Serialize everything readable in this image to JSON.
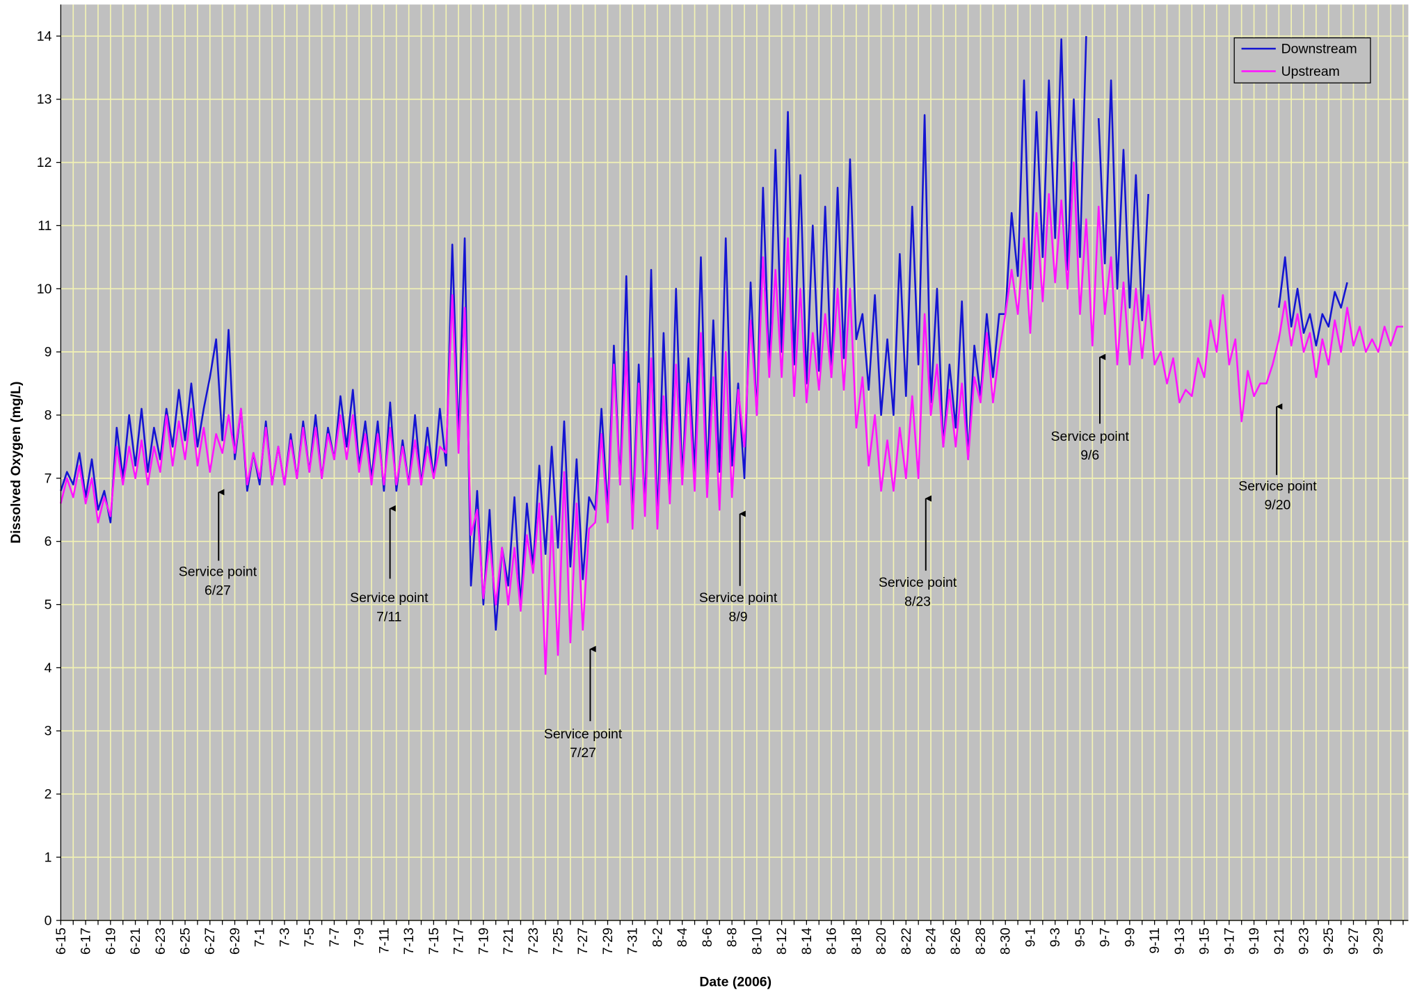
{
  "chart_data": {
    "type": "line",
    "x_label": "Date (2006)",
    "y_label": "Dissolved Oxygen (mg/L)",
    "categories": [
      "6-15",
      null,
      null,
      null,
      "6-17",
      null,
      null,
      null,
      "6-19",
      null,
      null,
      null,
      "6-21",
      null,
      null,
      null,
      "6-23",
      null,
      null,
      null,
      "6-25",
      null,
      null,
      null,
      "6-27",
      null,
      null,
      null,
      "6-29",
      null,
      null,
      null,
      "7-1",
      null,
      null,
      null,
      "7-3",
      null,
      null,
      null,
      "7-5",
      null,
      null,
      null,
      "7-7",
      null,
      null,
      null,
      "7-9",
      null,
      null,
      null,
      "7-11",
      null,
      null,
      null,
      "7-13",
      null,
      null,
      null,
      "7-15",
      null,
      null,
      null,
      "7-17",
      null,
      null,
      null,
      "7-19",
      null,
      null,
      null,
      "7-21",
      null,
      null,
      null,
      "7-23",
      null,
      null,
      null,
      "7-25",
      null,
      null,
      null,
      "7-27",
      null,
      null,
      null,
      "7-29",
      null,
      null,
      null,
      "7-31",
      null,
      null,
      null,
      "8-2",
      null,
      null,
      null,
      "8-4",
      null,
      null,
      null,
      "8-6",
      null,
      null,
      null,
      "8-8",
      null,
      null,
      null,
      "8-10",
      null,
      null,
      null,
      "8-12",
      null,
      null,
      null,
      "8-14",
      null,
      null,
      null,
      "8-16",
      null,
      null,
      null,
      "8-18",
      null,
      null,
      null,
      "8-20",
      null,
      null,
      null,
      "8-22",
      null,
      null,
      null,
      "8-24",
      null,
      null,
      null,
      "8-26",
      null,
      null,
      null,
      "8-28",
      null,
      null,
      null,
      "8-30",
      null,
      null,
      null,
      "9-1",
      null,
      null,
      null,
      "9-3",
      null,
      null,
      null,
      "9-5",
      null,
      null,
      null,
      "9-7",
      null,
      null,
      null,
      "9-9",
      null,
      null,
      null,
      "9-11",
      null,
      null,
      null,
      "9-13",
      null,
      null,
      null,
      "9-15",
      null,
      null,
      null,
      "9-17",
      null,
      null,
      null,
      "9-19",
      null,
      null,
      null,
      "9-21",
      null,
      null,
      null,
      "9-23",
      null,
      null,
      null,
      "9-25",
      null,
      null,
      null,
      "9-27",
      null,
      null,
      null,
      "9-29",
      null,
      null,
      null,
      null
    ],
    "series": [
      {
        "name": "Downstream",
        "color": "#1414d2",
        "values": [
          6.8,
          7.1,
          6.9,
          7.4,
          6.7,
          7.3,
          6.5,
          6.8,
          6.3,
          7.8,
          7.0,
          8.0,
          7.2,
          8.1,
          7.1,
          7.8,
          7.3,
          8.1,
          7.5,
          8.4,
          7.6,
          8.5,
          7.5,
          8.1,
          8.6,
          9.2,
          7.6,
          9.35,
          7.3,
          8.1,
          6.8,
          7.4,
          6.9,
          7.9,
          6.9,
          7.5,
          6.9,
          7.7,
          7.0,
          7.9,
          7.1,
          8.0,
          7.0,
          7.8,
          7.3,
          8.3,
          7.5,
          8.4,
          7.2,
          7.9,
          7.0,
          7.9,
          6.8,
          8.2,
          6.8,
          7.6,
          6.9,
          8.0,
          6.9,
          7.8,
          7.0,
          8.1,
          7.2,
          10.7,
          7.6,
          10.8,
          5.3,
          6.8,
          5.0,
          6.5,
          4.6,
          5.9,
          5.3,
          6.7,
          5.0,
          6.6,
          5.6,
          7.2,
          5.8,
          7.5,
          5.9,
          7.9,
          5.6,
          7.3,
          5.4,
          6.7,
          6.5,
          8.1,
          6.5,
          9.1,
          6.9,
          10.2,
          6.4,
          8.8,
          6.5,
          10.3,
          6.3,
          9.3,
          6.7,
          10.0,
          7.0,
          8.9,
          7.1,
          10.5,
          7.0,
          9.5,
          7.1,
          10.8,
          7.2,
          8.5,
          7.0,
          10.1,
          8.0,
          11.6,
          8.7,
          12.2,
          9.0,
          12.8,
          8.8,
          11.8,
          8.5,
          11.0,
          8.7,
          11.3,
          8.6,
          11.6,
          8.9,
          12.05,
          9.2,
          9.6,
          8.4,
          9.9,
          8.0,
          9.2,
          8.0,
          10.55,
          8.3,
          11.3,
          8.8,
          12.75,
          8.2,
          10.0,
          7.5,
          8.8,
          7.8,
          9.8,
          7.3,
          9.1,
          8.3,
          9.6,
          8.6,
          9.6,
          9.6,
          11.2,
          10.2,
          13.3,
          10.0,
          12.8,
          10.5,
          13.3,
          10.8,
          13.95,
          10.3,
          13.0,
          10.5,
          14.0,
          null,
          12.7,
          10.4,
          13.3,
          10.0,
          12.2,
          9.7,
          11.8,
          9.5,
          11.5,
          null,
          null,
          null,
          null,
          null,
          null,
          null,
          null,
          null,
          null,
          null,
          null,
          null,
          null,
          null,
          null,
          null,
          null,
          null,
          null,
          9.7,
          10.5,
          9.4,
          10.0,
          9.3,
          9.6,
          9.1,
          9.6,
          9.4,
          9.95,
          9.7,
          10.1,
          null,
          null,
          null,
          null,
          null,
          null,
          null,
          null,
          null
        ]
      },
      {
        "name": "Upstream",
        "color": "#ff14ff",
        "values": [
          6.6,
          7.0,
          6.7,
          7.2,
          6.6,
          7.0,
          6.3,
          6.7,
          6.4,
          7.5,
          6.9,
          7.5,
          7.0,
          7.6,
          6.9,
          7.5,
          7.1,
          8.0,
          7.2,
          7.9,
          7.3,
          8.1,
          7.2,
          7.8,
          7.1,
          7.7,
          7.4,
          8.0,
          7.4,
          8.1,
          6.9,
          7.4,
          7.0,
          7.8,
          6.9,
          7.5,
          6.9,
          7.6,
          7.0,
          7.8,
          7.1,
          7.8,
          7.0,
          7.7,
          7.3,
          8.0,
          7.3,
          8.0,
          7.1,
          7.7,
          6.9,
          7.7,
          6.9,
          7.8,
          6.9,
          7.5,
          6.9,
          7.6,
          6.9,
          7.5,
          7.0,
          7.5,
          7.4,
          9.9,
          7.4,
          9.7,
          6.1,
          6.5,
          5.1,
          6.0,
          5.0,
          5.9,
          5.0,
          5.9,
          4.9,
          6.1,
          5.5,
          6.6,
          3.9,
          6.4,
          4.2,
          7.1,
          4.4,
          6.6,
          4.6,
          6.2,
          6.3,
          7.7,
          6.3,
          8.8,
          6.9,
          9.0,
          6.2,
          8.5,
          6.4,
          8.9,
          6.2,
          8.3,
          6.6,
          8.8,
          6.9,
          8.5,
          6.8,
          9.3,
          6.7,
          8.6,
          6.5,
          9.0,
          6.7,
          8.4,
          7.5,
          9.5,
          8.0,
          10.5,
          8.6,
          10.3,
          8.6,
          10.8,
          8.3,
          10.0,
          8.2,
          9.3,
          8.4,
          9.6,
          8.6,
          10.0,
          8.4,
          10.0,
          7.8,
          8.6,
          7.2,
          8.0,
          6.8,
          7.6,
          6.8,
          7.8,
          7.0,
          8.3,
          7.0,
          9.6,
          8.0,
          8.8,
          7.5,
          8.4,
          7.5,
          8.5,
          7.3,
          8.6,
          8.2,
          9.3,
          8.2,
          9.0,
          9.6,
          10.3,
          9.6,
          10.8,
          9.3,
          11.2,
          9.8,
          11.5,
          10.1,
          11.4,
          10.0,
          12.0,
          9.6,
          11.1,
          9.1,
          11.3,
          9.6,
          10.5,
          8.8,
          10.1,
          8.8,
          10.0,
          8.9,
          9.9,
          8.8,
          9.0,
          8.5,
          8.9,
          8.2,
          8.4,
          8.3,
          8.9,
          8.6,
          9.5,
          9.0,
          9.9,
          8.8,
          9.2,
          7.9,
          8.7,
          8.3,
          8.5,
          8.5,
          8.8,
          9.2,
          9.8,
          9.1,
          9.6,
          9.0,
          9.3,
          8.6,
          9.2,
          8.8,
          9.5,
          9.0,
          9.7,
          9.1,
          9.4,
          9.0,
          9.2,
          9.0,
          9.4,
          9.1,
          9.4,
          9.4
        ]
      }
    ],
    "ylim": [
      0,
      14.5
    ],
    "yticks": [
      0,
      1,
      2,
      3,
      4,
      5,
      6,
      7,
      8,
      9,
      10,
      11,
      12,
      13,
      14
    ],
    "grid": true,
    "legend": "upper right",
    "annotations": [
      {
        "label": "Service point",
        "date": "6/27"
      },
      {
        "label": "Service point",
        "date": "7/11"
      },
      {
        "label": "Service point",
        "date": "7/27"
      },
      {
        "label": "Service point",
        "date": "8/9"
      },
      {
        "label": "Service point",
        "date": "8/23"
      },
      {
        "label": "Service point",
        "date": "9/6"
      },
      {
        "label": "Service point",
        "date": "9/20"
      }
    ]
  }
}
